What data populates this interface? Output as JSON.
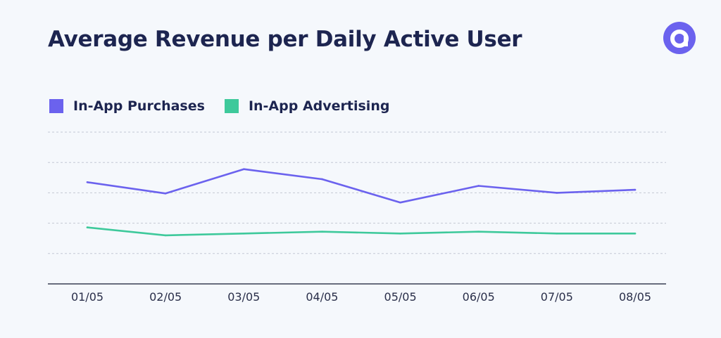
{
  "title": "Average Revenue per Daily Active User",
  "logo": {
    "icon": "applovin-logo-icon",
    "color": "#6b62ee"
  },
  "chart_data": {
    "type": "line",
    "title": "Average Revenue per Daily Active User",
    "xlabel": "",
    "ylabel": "",
    "categories": [
      "01/05",
      "02/05",
      "03/05",
      "04/05",
      "05/05",
      "06/05",
      "07/05",
      "08/05"
    ],
    "ylim": [
      0,
      5
    ],
    "grid": true,
    "legend_position": "top-left",
    "series": [
      {
        "name": "In-App Purchases",
        "color": "#6b62ee",
        "values": [
          3.35,
          2.98,
          3.78,
          3.45,
          2.68,
          3.23,
          3.0,
          3.1
        ]
      },
      {
        "name": "In-App Advertising",
        "color": "#3ec99b",
        "values": [
          1.86,
          1.6,
          1.66,
          1.72,
          1.66,
          1.72,
          1.66,
          1.66
        ]
      }
    ]
  }
}
